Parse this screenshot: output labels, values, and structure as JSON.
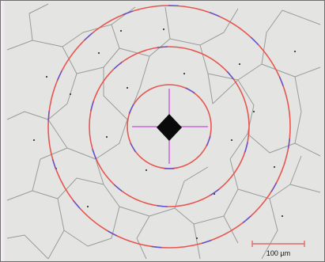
{
  "image": {
    "subject": "metallographic-grain-structure",
    "colors": {
      "background": "#e4e5e3",
      "grain_boundary": "#9a9c99",
      "circle": "#e8554f",
      "intercept_tick": "#5a55d6",
      "cross_line": "#c84ee0",
      "indent": "#0a0a0a",
      "scale_bar": "#e06a66"
    }
  },
  "overlay": {
    "concentric_circles": 3,
    "scale_bar": {
      "label": "100 µm"
    }
  }
}
